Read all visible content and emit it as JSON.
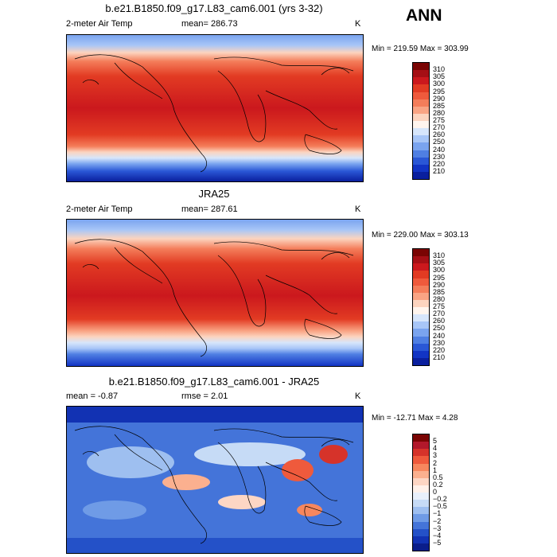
{
  "season": "ANN",
  "panels": [
    {
      "title": "b.e21.B1850.f09_g17.L83_cam6.001 (yrs 3-32)",
      "variable": "2-meter Air Temp",
      "stat_left": "",
      "stat": "mean= 286.73",
      "units": "K",
      "minmax": "Min = 219.59 Max = 303.99",
      "colorbar": {
        "labels": [
          "310",
          "305",
          "300",
          "295",
          "290",
          "285",
          "280",
          "275",
          "270",
          "260",
          "250",
          "240",
          "230",
          "220",
          "210"
        ],
        "colors": [
          "#7a0403",
          "#a50f15",
          "#cb181d",
          "#e23b23",
          "#ef5a3c",
          "#f47d5a",
          "#f9a484",
          "#fcd4bf",
          "#fff5ee",
          "#d7e6fb",
          "#a8c6f7",
          "#7aa4ef",
          "#4f7fe3",
          "#2a57d6",
          "#1234c4",
          "#0a1f9e"
        ]
      }
    },
    {
      "title": "JRA25",
      "variable": "2-meter Air Temp",
      "stat_left": "",
      "stat": "mean= 287.61",
      "units": "K",
      "minmax": "Min = 229.00 Max = 303.13",
      "colorbar": {
        "labels": [
          "310",
          "305",
          "300",
          "295",
          "290",
          "285",
          "280",
          "275",
          "270",
          "260",
          "250",
          "240",
          "230",
          "220",
          "210"
        ],
        "colors": [
          "#7a0403",
          "#a50f15",
          "#cb181d",
          "#e23b23",
          "#ef5a3c",
          "#f47d5a",
          "#f9a484",
          "#fcd4bf",
          "#fff5ee",
          "#d7e6fb",
          "#a8c6f7",
          "#7aa4ef",
          "#4f7fe3",
          "#2a57d6",
          "#1234c4",
          "#0a1f9e"
        ]
      }
    },
    {
      "title": "b.e21.B1850.f09_g17.L83_cam6.001 - JRA25",
      "variable": "",
      "stat_left": "mean =  -0.87",
      "stat": "rmse =   2.01",
      "units": "K",
      "minmax": "Min = -12.71 Max =   4.28",
      "colorbar": {
        "labels": [
          "5",
          "4",
          "3",
          "2",
          "1",
          "0.5",
          "0.2",
          "0",
          "−0.2",
          "−0.5",
          "−1",
          "−2",
          "−3",
          "−4",
          "−5"
        ],
        "colors": [
          "#7a0403",
          "#b2182b",
          "#d6332a",
          "#ef5a3c",
          "#f7875e",
          "#fbb08f",
          "#fdd6c4",
          "#fff1ea",
          "#e9f0fb",
          "#c6dbf6",
          "#9ebff0",
          "#6f9be6",
          "#4474d9",
          "#2451c8",
          "#1232b3",
          "#0a1d8a"
        ]
      }
    }
  ]
}
